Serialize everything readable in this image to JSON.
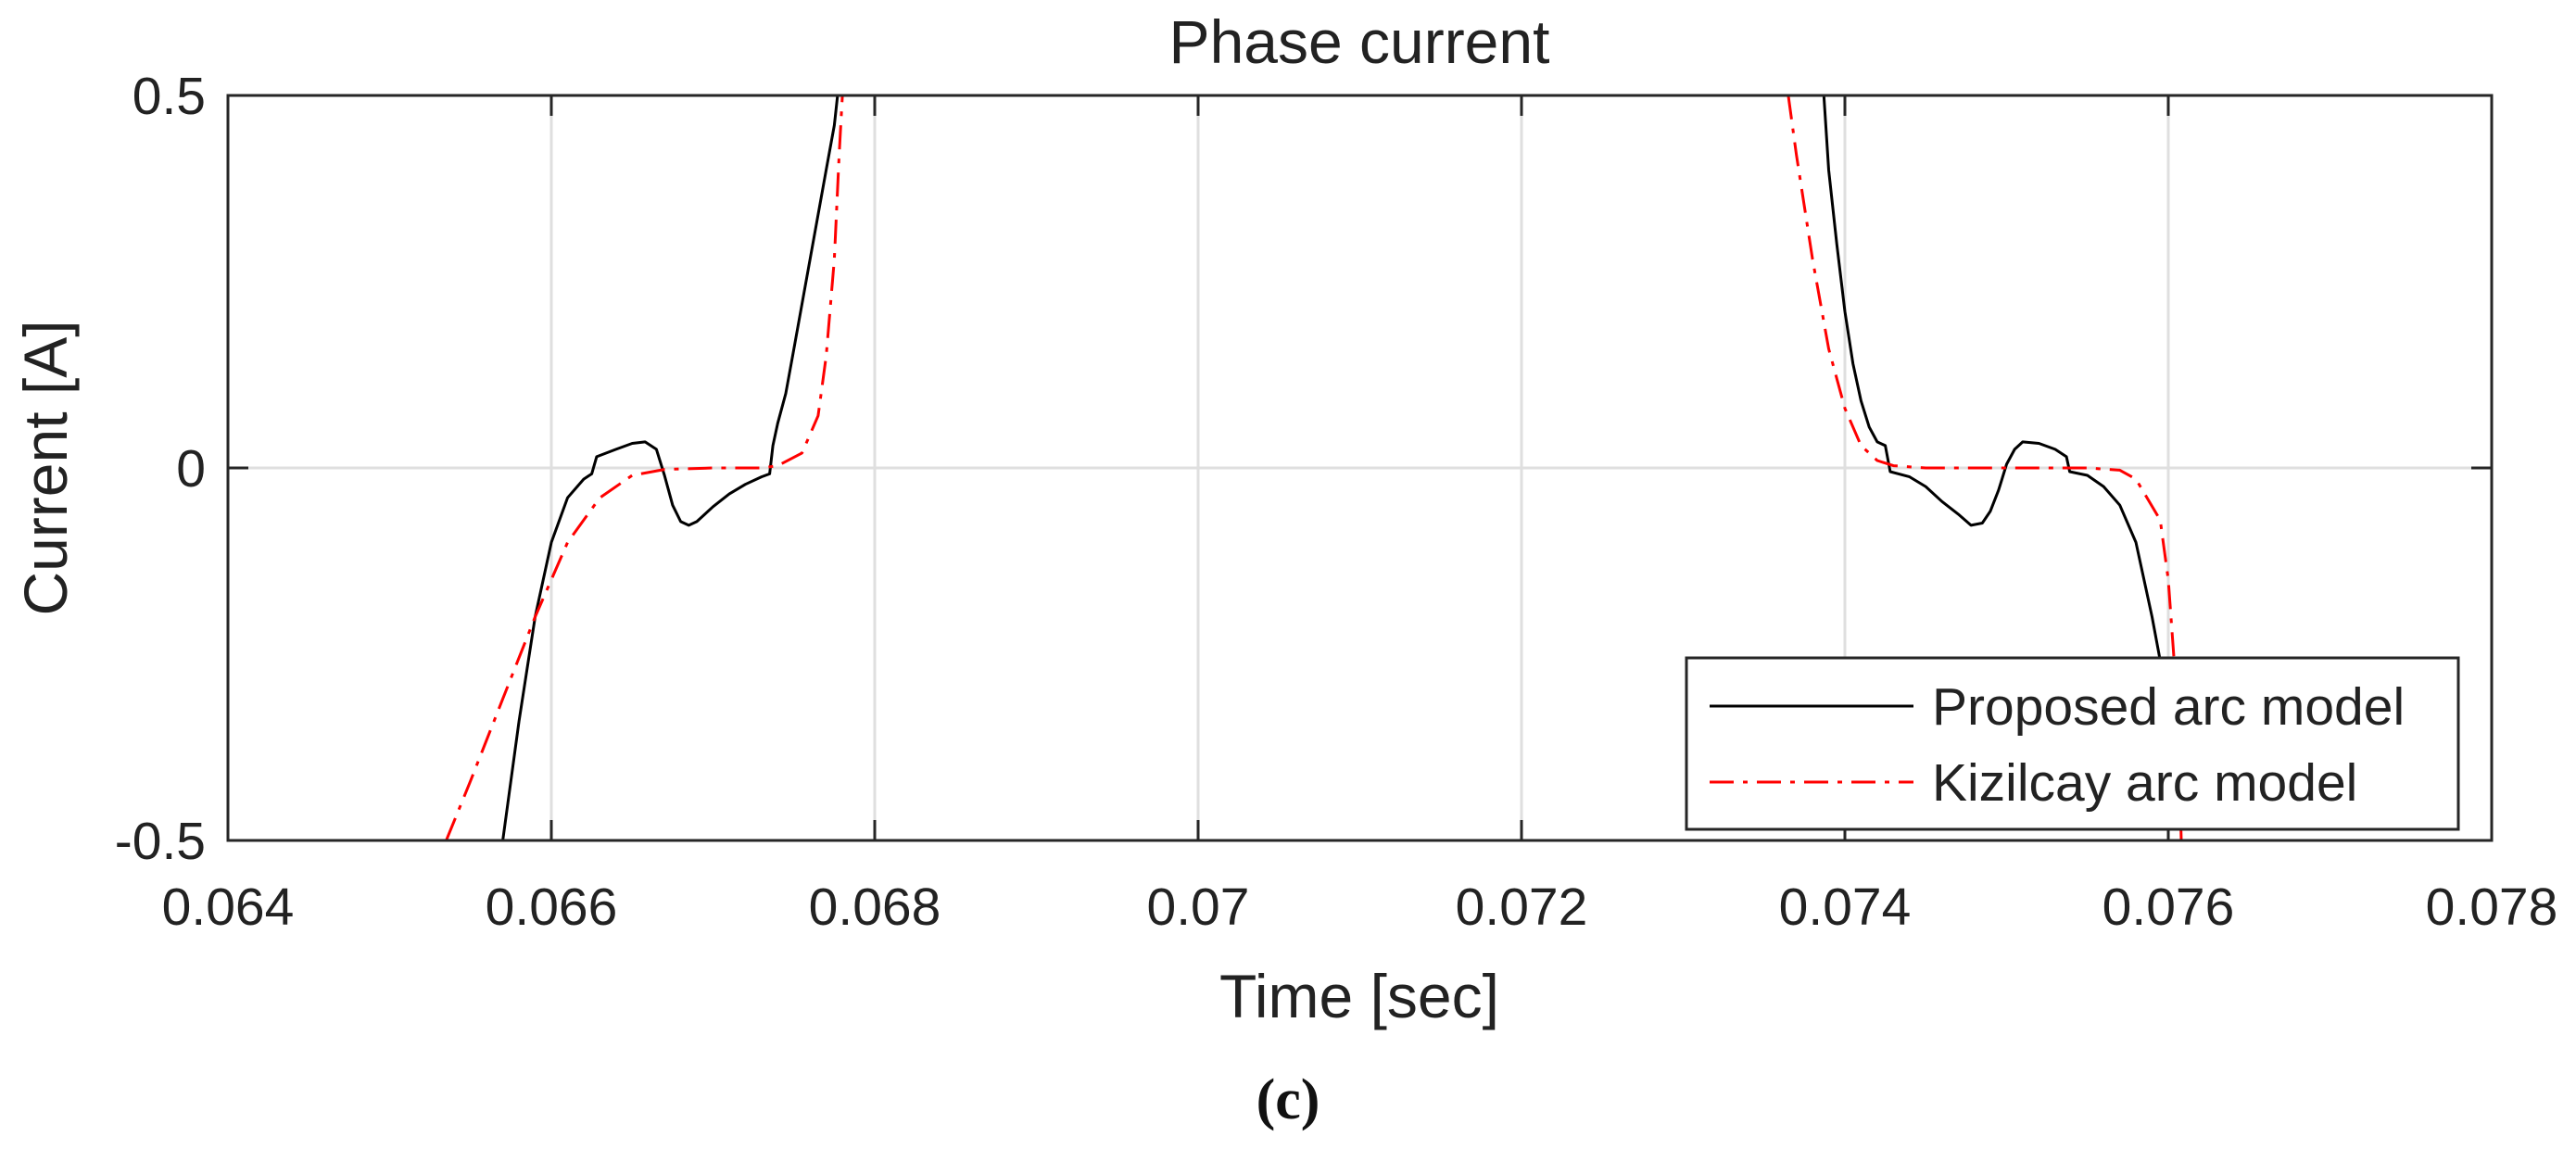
{
  "caption": "(c)",
  "chart_data": {
    "type": "line",
    "title": "Phase current",
    "xlabel": "Time [sec]",
    "ylabel": "Current [A]",
    "xlim": [
      0.064,
      0.078
    ],
    "ylim": [
      -0.5,
      0.5
    ],
    "xticks": [
      0.064,
      0.066,
      0.068,
      0.07,
      0.072,
      0.074,
      0.076,
      0.078
    ],
    "xtick_labels": [
      "0.064",
      "0.066",
      "0.068",
      "0.07",
      "0.072",
      "0.074",
      "0.076",
      "0.078"
    ],
    "yticks": [
      -0.5,
      0,
      0.5
    ],
    "ytick_labels": [
      "-0.5",
      "0",
      "0.5"
    ],
    "grid": true,
    "legend_position": "bottom-right",
    "series": [
      {
        "name": "Proposed arc model",
        "color": "#000000",
        "style": "solid",
        "segments": [
          [
            [
              0.0657,
              -0.5
            ],
            [
              0.0658,
              -0.34
            ],
            [
              0.0659,
              -0.2
            ],
            [
              0.066,
              -0.1
            ],
            [
              0.0661,
              -0.04
            ],
            [
              0.0662,
              -0.015
            ],
            [
              0.06625,
              -0.008
            ],
            [
              0.06628,
              0.015
            ],
            [
              0.0664,
              0.025
            ],
            [
              0.0665,
              0.033
            ],
            [
              0.06658,
              0.035
            ],
            [
              0.06665,
              0.025
            ],
            [
              0.0667,
              -0.01
            ],
            [
              0.06675,
              -0.05
            ],
            [
              0.0668,
              -0.072
            ],
            [
              0.06685,
              -0.077
            ],
            [
              0.0669,
              -0.072
            ],
            [
              0.067,
              -0.052
            ],
            [
              0.0671,
              -0.035
            ],
            [
              0.0672,
              -0.022
            ],
            [
              0.0673,
              -0.012
            ],
            [
              0.06735,
              -0.008
            ],
            [
              0.06737,
              0.03
            ],
            [
              0.0674,
              0.06
            ],
            [
              0.06745,
              0.1
            ],
            [
              0.0675,
              0.16
            ],
            [
              0.06755,
              0.22
            ],
            [
              0.0676,
              0.28
            ],
            [
              0.06765,
              0.34
            ],
            [
              0.0677,
              0.4
            ],
            [
              0.06775,
              0.46
            ],
            [
              0.06777,
              0.5
            ]
          ],
          [
            [
              0.07387,
              0.5
            ],
            [
              0.0739,
              0.4
            ],
            [
              0.07395,
              0.3
            ],
            [
              0.074,
              0.21
            ],
            [
              0.07405,
              0.14
            ],
            [
              0.0741,
              0.09
            ],
            [
              0.07415,
              0.055
            ],
            [
              0.0742,
              0.035
            ],
            [
              0.07425,
              0.03
            ],
            [
              0.07428,
              -0.005
            ],
            [
              0.0744,
              -0.012
            ],
            [
              0.0745,
              -0.025
            ],
            [
              0.0746,
              -0.045
            ],
            [
              0.0747,
              -0.062
            ],
            [
              0.07478,
              -0.077
            ],
            [
              0.07485,
              -0.074
            ],
            [
              0.0749,
              -0.058
            ],
            [
              0.07495,
              -0.03
            ],
            [
              0.075,
              0.005
            ],
            [
              0.07505,
              0.025
            ],
            [
              0.0751,
              0.035
            ],
            [
              0.0752,
              0.033
            ],
            [
              0.0753,
              0.025
            ],
            [
              0.07537,
              0.015
            ],
            [
              0.07539,
              -0.005
            ],
            [
              0.0755,
              -0.01
            ],
            [
              0.0756,
              -0.025
            ],
            [
              0.0757,
              -0.05
            ],
            [
              0.0758,
              -0.1
            ],
            [
              0.0759,
              -0.2
            ],
            [
              0.07596,
              -0.27
            ]
          ]
        ]
      },
      {
        "name": "Kizilcay arc model",
        "color": "#ff0000",
        "style": "dashdot",
        "segments": [
          [
            [
              0.06535,
              -0.5
            ],
            [
              0.0655,
              -0.42
            ],
            [
              0.0657,
              -0.31
            ],
            [
              0.0659,
              -0.2
            ],
            [
              0.0661,
              -0.1
            ],
            [
              0.0663,
              -0.04
            ],
            [
              0.0665,
              -0.01
            ],
            [
              0.0667,
              -0.002
            ],
            [
              0.067,
              0.0
            ],
            [
              0.0673,
              0.0
            ],
            [
              0.0674,
              0.003
            ],
            [
              0.06755,
              0.02
            ],
            [
              0.06765,
              0.07
            ],
            [
              0.0677,
              0.15
            ],
            [
              0.06775,
              0.28
            ],
            [
              0.06778,
              0.42
            ],
            [
              0.0678,
              0.5
            ]
          ],
          [
            [
              0.07365,
              0.5
            ],
            [
              0.0737,
              0.42
            ],
            [
              0.0738,
              0.28
            ],
            [
              0.0739,
              0.16
            ],
            [
              0.074,
              0.08
            ],
            [
              0.0741,
              0.03
            ],
            [
              0.0742,
              0.01
            ],
            [
              0.0743,
              0.003
            ],
            [
              0.0745,
              0.0
            ],
            [
              0.0755,
              0.0
            ],
            [
              0.0757,
              -0.003
            ],
            [
              0.0758,
              -0.015
            ],
            [
              0.07595,
              -0.07
            ],
            [
              0.076,
              -0.15
            ],
            [
              0.07605,
              -0.3
            ],
            [
              0.07607,
              -0.42
            ],
            [
              0.07608,
              -0.5
            ]
          ]
        ]
      }
    ]
  }
}
